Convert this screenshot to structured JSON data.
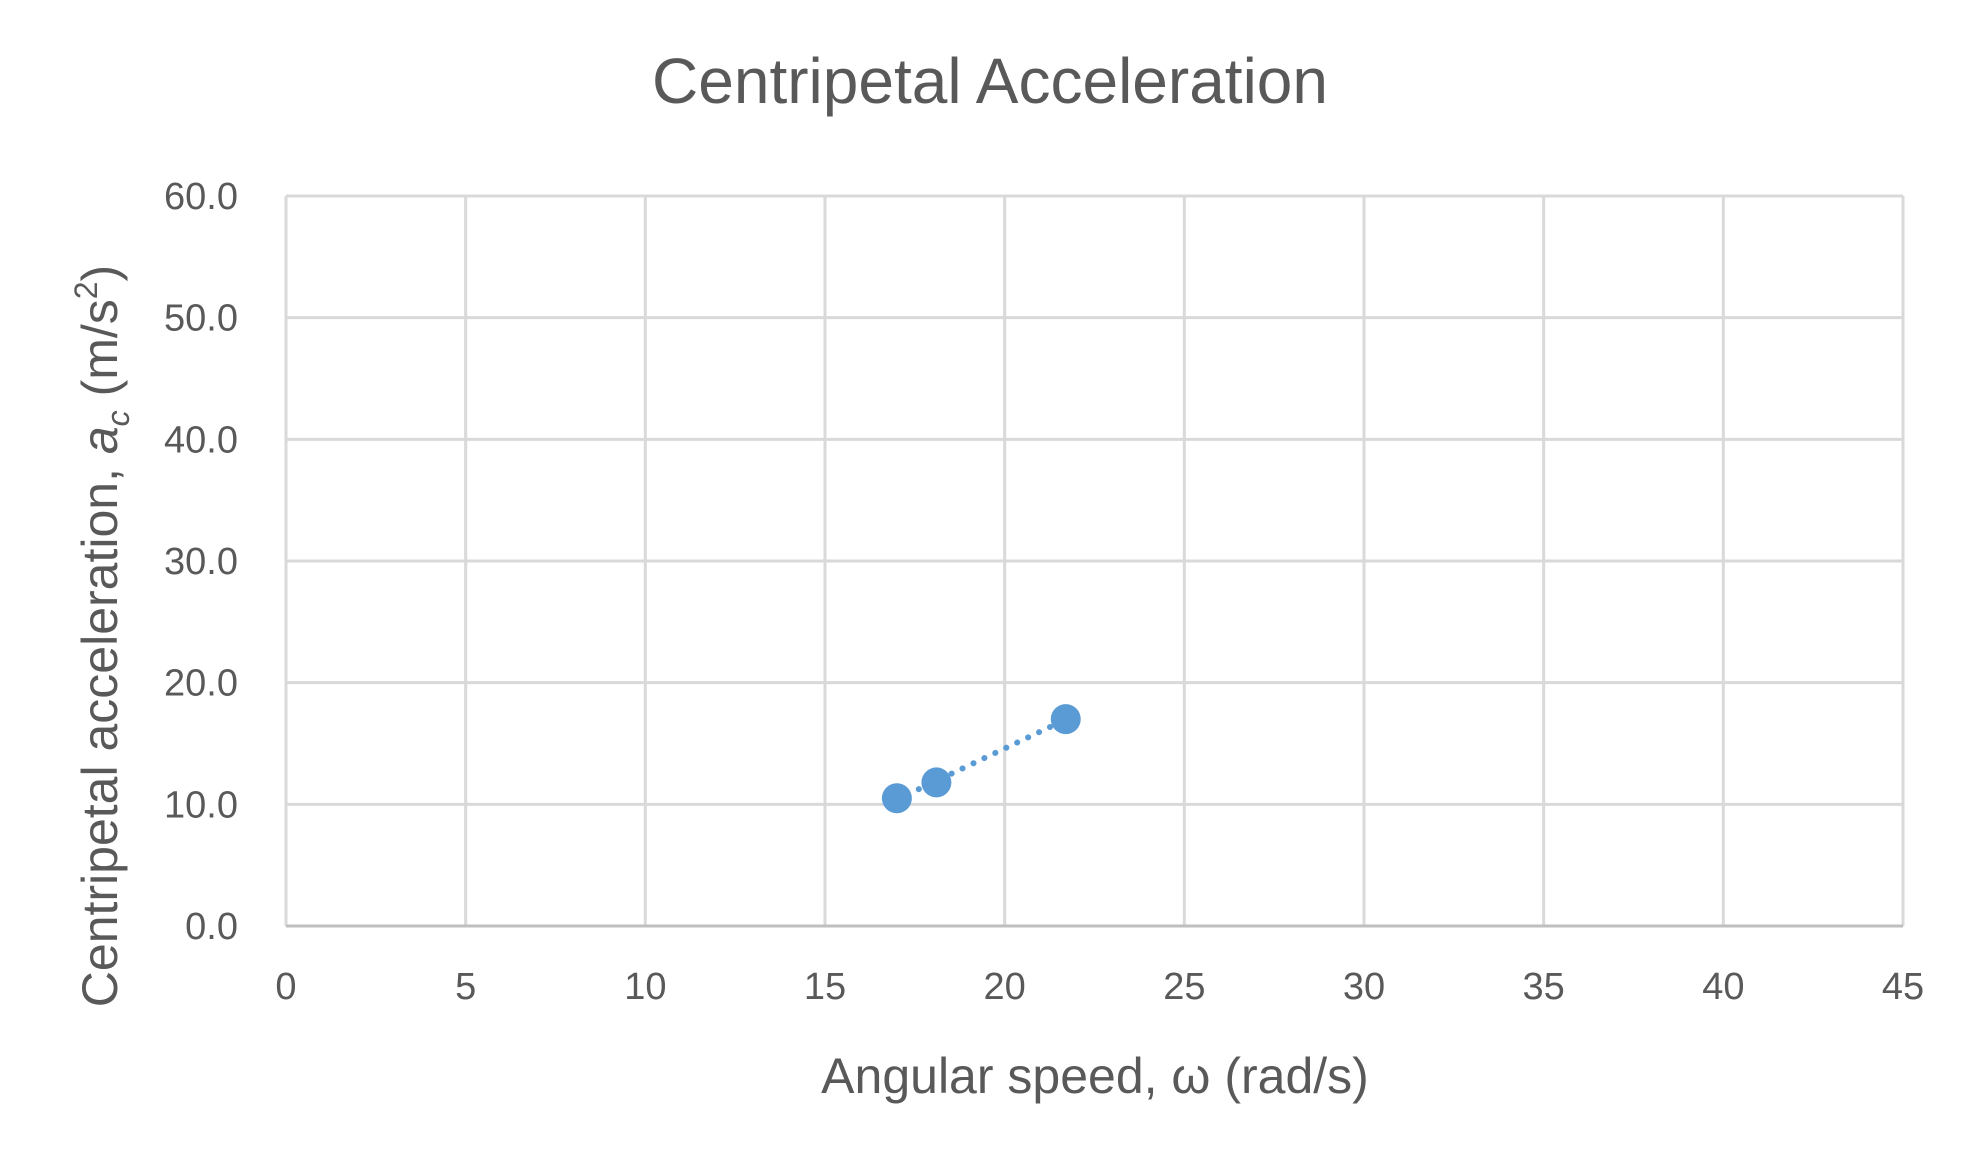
{
  "chart_data": {
    "type": "scatter",
    "title": "Centripetal Acceleration",
    "xlabel": "Angular speed, ω (rad/s)",
    "ylabel": {
      "main": "Centripetal acceleration, ",
      "symbol": "a",
      "subscript": "c",
      "unit_open": " (m/s",
      "unit_exp": "2",
      "unit_close": ")"
    },
    "xlim": [
      0,
      45
    ],
    "ylim": [
      0,
      60
    ],
    "x_ticks": [
      "0",
      "5",
      "10",
      "15",
      "20",
      "25",
      "30",
      "35",
      "40",
      "45"
    ],
    "y_ticks": [
      "0.0",
      "10.0",
      "20.0",
      "30.0",
      "40.0",
      "50.0",
      "60.0"
    ],
    "grid": true,
    "series": [
      {
        "x": [
          17.0,
          18.1,
          21.7
        ],
        "y": [
          10.5,
          11.8,
          17.0
        ],
        "color": "#5b9bd5",
        "trendline": "linear",
        "trendline_style": "dotted"
      }
    ]
  }
}
